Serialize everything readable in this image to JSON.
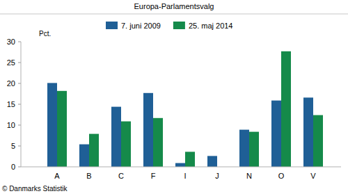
{
  "chart_data": {
    "type": "bar",
    "title": "Europa-Parlamentsvalg",
    "y_label": "Pct.",
    "source": "© Danmarks Statistik",
    "categories": [
      "A",
      "B",
      "C",
      "F",
      "I",
      "J",
      "N",
      "O",
      "V"
    ],
    "series": [
      {
        "name": "7. juni 2009",
        "color": "#1f5f96",
        "values": [
          20.1,
          5.4,
          14.4,
          17.7,
          0.9,
          2.6,
          8.9,
          15.9,
          16.6
        ]
      },
      {
        "name": "25. maj 2014",
        "color": "#158a4a",
        "values": [
          18.2,
          7.9,
          10.9,
          11.7,
          3.6,
          null,
          8.4,
          27.7,
          12.4
        ]
      }
    ],
    "ylim": [
      0,
      30
    ],
    "yticks": [
      0,
      5,
      10,
      15,
      20,
      25,
      30
    ],
    "grid": false,
    "legend": "top"
  }
}
